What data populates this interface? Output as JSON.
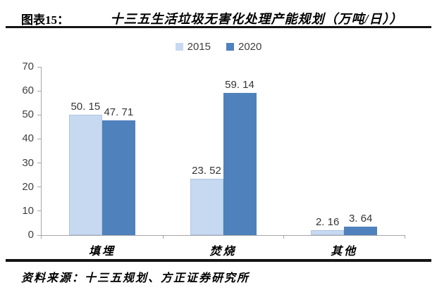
{
  "header": {
    "figure_label": "图表15：",
    "title": "十三五生活垃圾无害化处理产能规划（万吨/日））"
  },
  "footer": {
    "source": "资料来源：十三五规划、方正证券研究所"
  },
  "colors": {
    "series_2015": "#c6d9f0",
    "series_2020": "#4f81bd",
    "axis": "#a6a6a6",
    "rule": "#141414",
    "tick_text": "#404040",
    "data_label_text": "#353535"
  },
  "chart_data": {
    "type": "bar",
    "title": "十三五生活垃圾无害化处理产能规划（万吨/日））",
    "categories": [
      "填埋",
      "焚烧",
      "其他"
    ],
    "series": [
      {
        "name": "2015",
        "color": "#c6d9f0",
        "values": [
          50.15,
          23.52,
          2.16
        ],
        "display_labels": [
          "50. 15",
          "23. 52",
          "2. 16"
        ]
      },
      {
        "name": "2020",
        "color": "#4f81bd",
        "values": [
          47.71,
          59.14,
          3.64
        ],
        "display_labels": [
          "47. 71",
          "59. 14",
          "3. 64"
        ]
      }
    ],
    "xlabel": "",
    "ylabel": "",
    "ylim": [
      0,
      70
    ],
    "yticks": [
      0,
      10,
      20,
      30,
      40,
      50,
      60,
      70
    ],
    "grid": false,
    "legend_position": "top-center"
  }
}
